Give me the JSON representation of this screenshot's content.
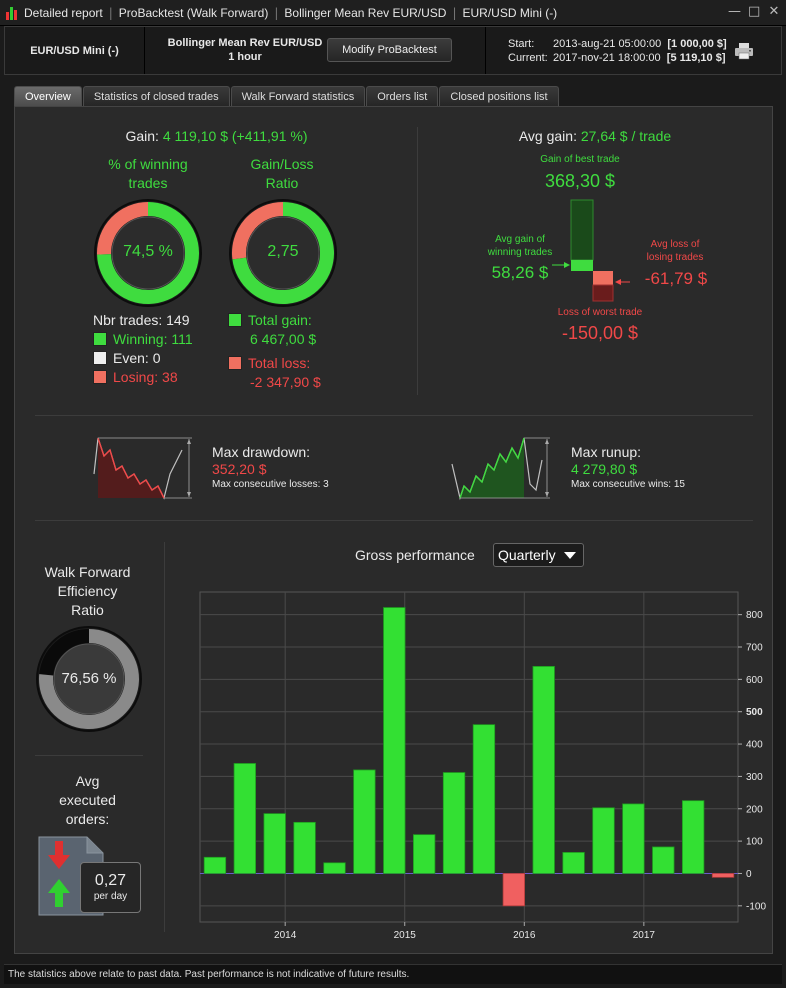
{
  "window": {
    "title_parts": [
      "Detailed report",
      "ProBacktest (Walk Forward)",
      "Bollinger Mean Rev EUR/USD",
      "EUR/USD Mini (-)"
    ]
  },
  "header": {
    "symbol": "EUR/USD Mini (-)",
    "strategy": "Bollinger Mean Rev EUR/USD",
    "timeframe": "1 hour",
    "modify_label": "Modify ProBacktest",
    "start_label": "Start:",
    "start_date": "2013-aug-21 05:00:00",
    "start_value": "[1 000,00 $]",
    "current_label": "Current:",
    "current_date": "2017-nov-21 18:00:00",
    "current_value": "[5 119,10 $]"
  },
  "tabs": [
    "Overview",
    "Statistics of closed trades",
    "Walk Forward statistics",
    "Orders list",
    "Closed positions list"
  ],
  "gain": {
    "label": "Gain:",
    "value": "4 119,10 $ (+411,91 %)"
  },
  "winning": {
    "title_line1": "% of winning",
    "title_line2": "trades",
    "value": "74,5 %",
    "fraction": 0.745
  },
  "ratio": {
    "title_line1": "Gain/Loss",
    "title_line2": "Ratio",
    "value": "2,75",
    "fraction": 0.73
  },
  "trades": {
    "nbr_label": "Nbr trades: 149",
    "winning_label": "Winning: 111",
    "even_label": "Even: 0",
    "losing_label": "Losing: 38",
    "total_gain_label": "Total gain:",
    "total_gain_value": "6 467,00 $",
    "total_loss_label": "Total loss:",
    "total_loss_value": "-2 347,90 $"
  },
  "avg": {
    "label": "Avg gain:",
    "value": "27,64 $ / trade",
    "best_label": "Gain of best trade",
    "best_value": "368,30 $",
    "avg_win_label_1": "Avg gain of",
    "avg_win_label_2": "winning trades",
    "avg_win_value": "58,26 $",
    "avg_loss_label_1": "Avg loss of",
    "avg_loss_label_2": "losing trades",
    "avg_loss_value": "-61,79 $",
    "worst_label": "Loss of worst trade",
    "worst_value": "-150,00 $"
  },
  "drawdown": {
    "label": "Max drawdown:",
    "value": "352,20 $",
    "sub": "Max consecutive losses: 3"
  },
  "runup": {
    "label": "Max runup:",
    "value": "4 279,80 $",
    "sub": "Max consecutive wins: 15"
  },
  "wfe": {
    "title_1": "Walk Forward",
    "title_2": "Efficiency",
    "title_3": "Ratio",
    "value": "76,56 %",
    "fraction": 0.7656
  },
  "orders": {
    "title_1": "Avg",
    "title_2": "executed",
    "title_3": "orders:",
    "value": "0,27",
    "unit": "per day"
  },
  "gross": {
    "title": "Gross performance",
    "period": "Quarterly"
  },
  "chart_data": {
    "type": "bar",
    "title": "Gross performance",
    "xlabel": "",
    "ylabel": "",
    "ylim": [
      -150,
      870
    ],
    "yticks": [
      -100,
      0,
      100,
      200,
      300,
      400,
      500,
      600,
      700,
      800
    ],
    "ytick_labels": [
      "-100",
      "0",
      "100",
      "200",
      "300",
      "400",
      "500",
      "600",
      "700",
      "800"
    ],
    "xtick_labels": [
      "2014",
      "2015",
      "2016",
      "2017"
    ],
    "xtick_quarter_index": [
      2.35,
      6.35,
      10.35,
      14.35
    ],
    "values": [
      50,
      340,
      185,
      158,
      33,
      320,
      822,
      120,
      312,
      460,
      -100,
      640,
      65,
      203,
      215,
      82,
      225,
      -12
    ],
    "positive_color": "#33e033",
    "negative_color": "#f06060",
    "grid": true
  },
  "footer": {
    "disclaimer": "The statistics above relate to past data. Past performance is not indicative of future results."
  }
}
